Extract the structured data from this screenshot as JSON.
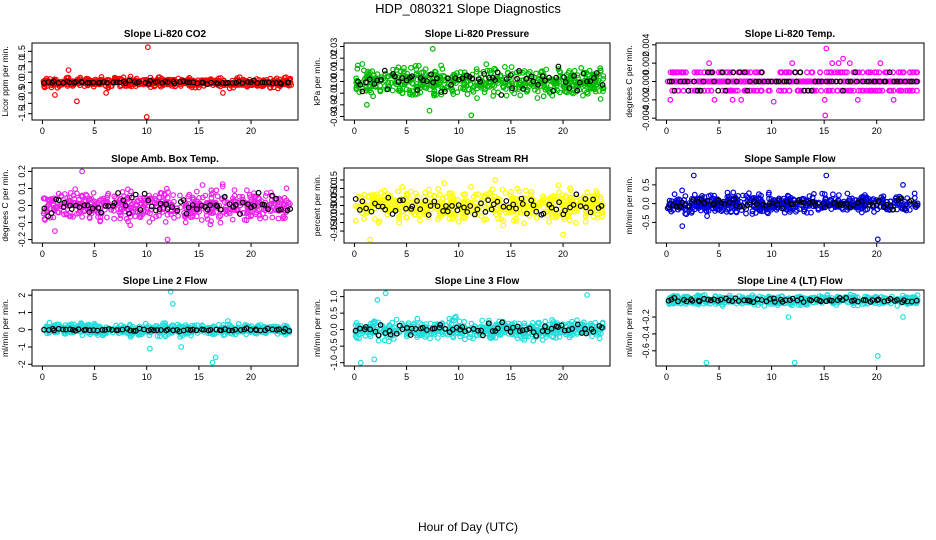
{
  "title": "HDP_080321  Slope Diagnostics",
  "xlabel": "Hour of Day (UTC)",
  "chart_data": [
    {
      "type": "scatter",
      "title": "Slope Li-820 CO2",
      "ylabel": "Licor ppm per min.",
      "xlim": [
        -1,
        24.5
      ],
      "ylim": [
        -1.8,
        1.9
      ],
      "yticks": [
        "-1.5",
        "-1.0",
        "-0.5",
        "0.0",
        "0.5",
        "1.0",
        "1.5"
      ],
      "ytick_values": [
        -1.5,
        -1.0,
        -0.5,
        0.0,
        0.5,
        1.0,
        1.5
      ],
      "xticks": [
        "0",
        "5",
        "10",
        "15",
        "20"
      ],
      "xtick_values": [
        0,
        5,
        10,
        15,
        20
      ],
      "color": "#ff0000",
      "spread": 0.2,
      "outliers": [
        [
          10.1,
          1.7
        ],
        [
          10,
          -1.65
        ],
        [
          1.2,
          -0.6
        ],
        [
          2.5,
          0.6
        ],
        [
          3.3,
          -0.9
        ],
        [
          17.3,
          -0.5
        ],
        [
          6.1,
          -0.5
        ]
      ],
      "black_spread": 0.07,
      "level_step": 0
    },
    {
      "type": "scatter",
      "title": "Slope Li-820 Pressure",
      "ylabel": "kPa per min.",
      "xlim": [
        -1,
        24.5
      ],
      "ylim": [
        -0.033,
        0.033
      ],
      "yticks": [
        "-0.03",
        "-0.02",
        "-0.01",
        "0.00",
        "0.01",
        "0.02",
        "0.03"
      ],
      "ytick_values": [
        -0.03,
        -0.02,
        -0.01,
        0.0,
        0.01,
        0.02,
        0.03
      ],
      "xticks": [
        "0",
        "5",
        "10",
        "15",
        "20"
      ],
      "xtick_values": [
        0,
        5,
        10,
        15,
        20
      ],
      "color": "#00bb00",
      "spread": 0.011,
      "outliers": [
        [
          7.5,
          0.028
        ],
        [
          11.2,
          -0.029
        ],
        [
          7.2,
          -0.025
        ],
        [
          23.6,
          -0.015
        ],
        [
          1.2,
          -0.02
        ]
      ],
      "black_spread": 0.008,
      "level_step": 0
    },
    {
      "type": "scatter",
      "title": "Slope Li-820 Temp.",
      "ylabel": "degrees C per min.",
      "xlim": [
        -1,
        24.5
      ],
      "ylim": [
        -0.0042,
        0.0042
      ],
      "yticks": [
        "-0.004",
        "-0.002",
        "0.000",
        "0.002",
        "0.004"
      ],
      "ytick_values": [
        -0.004,
        -0.002,
        0.0,
        0.002,
        0.004
      ],
      "xticks": [
        "0",
        "5",
        "10",
        "15",
        "20"
      ],
      "xtick_values": [
        0,
        5,
        10,
        15,
        20
      ],
      "color": "#ff00ff",
      "spread": 0.0012,
      "outliers": [
        [
          15.2,
          0.0036
        ],
        [
          15.1,
          -0.0037
        ],
        [
          16.8,
          0.0025
        ],
        [
          10.2,
          -0.0022
        ]
      ],
      "black_spread": 0.0008,
      "level_step": 0.001
    },
    {
      "type": "scatter",
      "title": "Slope Amb. Box Temp.",
      "ylabel": "degrees C per min.",
      "xlim": [
        -1,
        24.5
      ],
      "ylim": [
        -0.22,
        0.22
      ],
      "yticks": [
        "-0.2",
        "-0.1",
        "0.0",
        "0.1",
        "0.2"
      ],
      "ytick_values": [
        -0.2,
        -0.1,
        0.0,
        0.1,
        0.2
      ],
      "xticks": [
        "0",
        "5",
        "10",
        "15",
        "20"
      ],
      "xtick_values": [
        0,
        5,
        10,
        15,
        20
      ],
      "color": "#ee22ee",
      "spread": 0.08,
      "outliers": [
        [
          3.8,
          0.2
        ],
        [
          12,
          -0.2
        ],
        [
          1.2,
          -0.15
        ]
      ],
      "black_spread": 0.06,
      "level_step": 0
    },
    {
      "type": "scatter",
      "title": "Slope Gas Stream RH",
      "ylabel": "percent per min.",
      "xlim": [
        -1,
        24.5
      ],
      "ylim": [
        -0.22,
        0.22
      ],
      "yticks": [
        "-0.15",
        "-0.10",
        "-0.05",
        "0.00",
        "0.05",
        "0.10",
        "0.15"
      ],
      "ytick_values": [
        -0.15,
        -0.1,
        -0.05,
        0.0,
        0.05,
        0.1,
        0.15
      ],
      "xticks": [
        "0",
        "5",
        "10",
        "15",
        "20"
      ],
      "xtick_values": [
        0,
        5,
        10,
        15,
        20
      ],
      "color": "#ffff00",
      "spread": 0.08,
      "outliers": [
        [
          1.5,
          -0.2
        ],
        [
          13.5,
          0.15
        ],
        [
          20,
          -0.17
        ]
      ],
      "black_spread": 0.06,
      "level_step": 0
    },
    {
      "type": "scatter",
      "title": "Slope Sample Flow",
      "ylabel": "ml/min per min.",
      "xlim": [
        -1,
        24.5
      ],
      "ylim": [
        -1.05,
        0.95
      ],
      "yticks": [
        "-0.5",
        "0.0",
        "0.5"
      ],
      "ytick_values": [
        -0.5,
        0.0,
        0.5
      ],
      "xticks": [
        "0",
        "5",
        "10",
        "15",
        "20"
      ],
      "xtick_values": [
        0,
        5,
        10,
        15,
        20
      ],
      "color": "#0000dd",
      "spread": 0.22,
      "outliers": [
        [
          2.6,
          0.75
        ],
        [
          20.1,
          -0.95
        ],
        [
          15.2,
          0.75
        ],
        [
          22.5,
          0.5
        ],
        [
          1.5,
          -0.6
        ]
      ],
      "black_spread": 0.12,
      "level_step": 0
    },
    {
      "type": "scatter",
      "title": "Slope Line 2 Flow",
      "ylabel": "ml/min per min.",
      "xlim": [
        -1,
        24.5
      ],
      "ylim": [
        -2.1,
        2.3
      ],
      "yticks": [
        "-2",
        "-1",
        "0",
        "1",
        "2"
      ],
      "ytick_values": [
        -2,
        -1,
        0,
        1,
        2
      ],
      "xticks": [
        "0",
        "5",
        "10",
        "15",
        "20"
      ],
      "xtick_values": [
        0,
        5,
        10,
        15,
        20
      ],
      "color": "#22dddd",
      "spread": 0.3,
      "outliers": [
        [
          12.3,
          2.2
        ],
        [
          16.3,
          -1.9
        ],
        [
          16.6,
          -1.6
        ],
        [
          12.5,
          1.5
        ],
        [
          10.3,
          -1.1
        ],
        [
          13.3,
          -1.0
        ]
      ],
      "black_spread": 0.08,
      "level_step": 0
    },
    {
      "type": "scatter",
      "title": "Slope Line 3 Flow",
      "ylabel": "ml/min per min.",
      "xlim": [
        -1,
        24.5
      ],
      "ylim": [
        -1.1,
        1.2
      ],
      "yticks": [
        "-1.0",
        "-0.5",
        "0.0",
        "0.5",
        "1.0"
      ],
      "ytick_values": [
        -1.0,
        -0.5,
        0.0,
        0.5,
        1.0
      ],
      "xticks": [
        "0",
        "5",
        "10",
        "15",
        "20"
      ],
      "xtick_values": [
        0,
        5,
        10,
        15,
        20
      ],
      "color": "#22dddd",
      "spread": 0.25,
      "outliers": [
        [
          3.0,
          1.1
        ],
        [
          1.9,
          -0.9
        ],
        [
          0.6,
          -1.0
        ],
        [
          22.3,
          1.05
        ],
        [
          2.2,
          0.9
        ]
      ],
      "black_spread": 0.15,
      "level_step": 0
    },
    {
      "type": "scatter",
      "title": "Slope Line 4 (LT) Flow",
      "ylabel": "ml/min per min.",
      "xlim": [
        -1,
        24.5
      ],
      "ylim": [
        -0.78,
        0.12
      ],
      "yticks": [
        "-0.6",
        "-0.4",
        "-0.2"
      ],
      "ytick_values": [
        -0.6,
        -0.4,
        -0.2
      ],
      "xticks": [
        "0",
        "5",
        "10",
        "15",
        "20"
      ],
      "xtick_values": [
        0,
        5,
        10,
        15,
        20
      ],
      "color": "#22dddd",
      "spread": 0.05,
      "outliers": [
        [
          3.8,
          -0.74
        ],
        [
          12.2,
          -0.74
        ],
        [
          20.1,
          -0.66
        ],
        [
          11.6,
          -0.2
        ],
        [
          22.5,
          -0.2
        ]
      ],
      "black_spread": 0.025,
      "level_step": 0
    }
  ]
}
